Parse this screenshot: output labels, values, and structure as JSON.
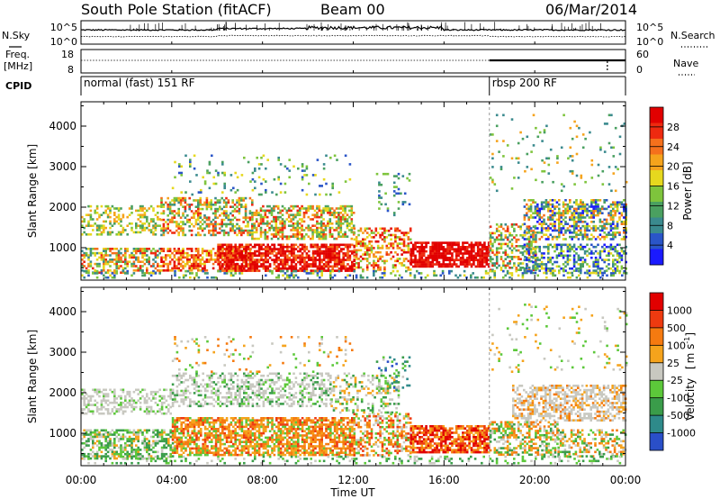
{
  "header": {
    "station": "South Pole Station (fitACF)",
    "beam": "Beam 00",
    "date": "06/Mar/2014"
  },
  "chart_data": [
    {
      "type": "line",
      "panel": "noise",
      "left_label": "N.Sky",
      "right_label": "N.Search",
      "left_ticks": [
        "10^5",
        "10^0"
      ],
      "right_ticks": [
        "10^5",
        "10^0"
      ]
    },
    {
      "type": "line",
      "panel": "frequency",
      "left_label_line1": "Freq.",
      "left_label_line2": "[MHz]",
      "right_label": "Nave",
      "left_ticks": [
        18,
        8
      ],
      "right_ticks": [
        60,
        0
      ],
      "freq_range": [
        8,
        18
      ],
      "nave_range": [
        0,
        60
      ]
    },
    {
      "type": "table",
      "panel": "cpid",
      "label": "CPID",
      "segments": [
        {
          "start": 0,
          "end": 18,
          "text": "normal (fast) 151 RF"
        },
        {
          "start": 18,
          "end": 24,
          "text": "rbsp 200 RF"
        }
      ]
    },
    {
      "type": "heatmap",
      "panel": "power",
      "ylabel": "Slant Range [km]",
      "yticks": [
        1000,
        2000,
        3000,
        4000
      ],
      "ylim": [
        200,
        4600
      ],
      "xlim": [
        0,
        24
      ],
      "colorbar": {
        "label": "Power [dB]",
        "ticks": [
          4,
          8,
          12,
          16,
          20,
          24,
          28
        ],
        "colors": [
          "#1a1aff",
          "#2a55c8",
          "#3a8a8e",
          "#4aa060",
          "#7ec43c",
          "#e6d81e",
          "#f5a31c",
          "#f5701c",
          "#ee2a10",
          "#e10000"
        ]
      },
      "bands": [
        {
          "x": [
            0,
            24
          ],
          "y": [
            400,
            2300
          ],
          "note": "scatter"
        }
      ]
    },
    {
      "type": "heatmap",
      "panel": "velocity",
      "ylabel": "Slant Range [km]",
      "xlabel": "Time UT",
      "yticks": [
        1000,
        2000,
        3000,
        4000
      ],
      "ylim": [
        200,
        4600
      ],
      "xlim": [
        0,
        24
      ],
      "xticks": [
        "00:00",
        "04:00",
        "08:00",
        "12:00",
        "16:00",
        "20:00",
        "00:00"
      ],
      "colorbar": {
        "label": "Velocity",
        "unit": "m s",
        "unit_exp": "-1",
        "ticks": [
          "1000",
          "500",
          "100",
          "25",
          "-25",
          "-100",
          "-500",
          "-1000"
        ],
        "colors": [
          "#2a4fc8",
          "#2e8a8a",
          "#3a9c4a",
          "#5cc83a",
          "#c8c8c0",
          "#f5a31c",
          "#f57a10",
          "#ee3a10",
          "#e10000"
        ]
      }
    }
  ]
}
